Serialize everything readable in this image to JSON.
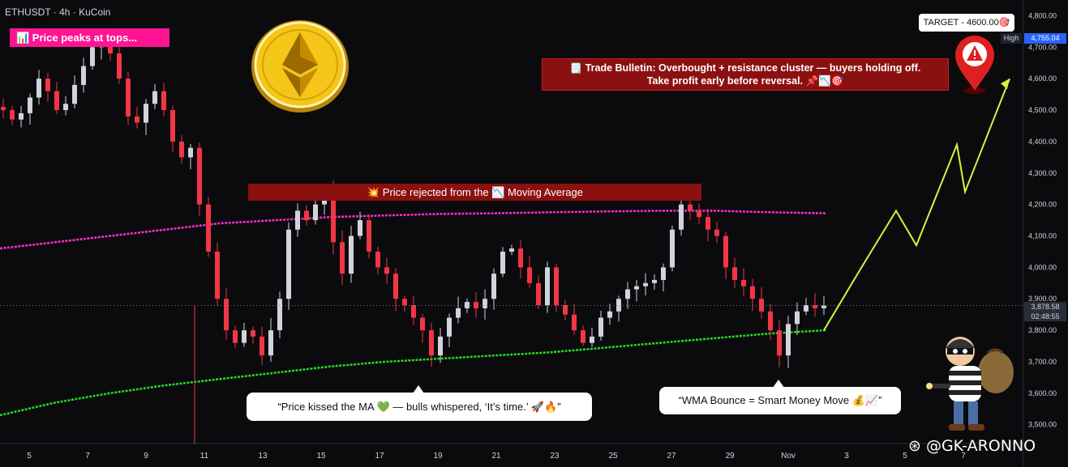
{
  "header": {
    "symbol": "ETHUSDT · 4h · KuCoin"
  },
  "annotations": {
    "peak_banner": "📊 Price peaks at tops...",
    "reject_banner": "💥 Price rejected from the 📉 Moving Average",
    "bulletin_line1": "🗒️ Trade Bulletin: Overbought + resistance cluster — buyers holding off.",
    "bulletin_line2": "Take profit early before reversal. 📌📉🎯",
    "bubble_kiss": "“Price kissed the MA 💚 — bulls whispered, ‘It’s time.’ 🚀🔥”",
    "bubble_wma": "“WMA Bounce = Smart Money Move 💰📈”",
    "target_tag": "TARGET - 4600.00🎯",
    "high_tag": "High",
    "high_price": "4,755.04",
    "last_price": "3,878.58",
    "countdown": "02:48:55",
    "watermark": "⊛ @GK-ARONNO"
  },
  "icons": {
    "coin": "ethereum-coin-icon",
    "pin": "warning-location-pin-icon",
    "thief": "thief-with-money-bag-icon"
  },
  "colors": {
    "background": "#0b0b0e",
    "candle_up": "#d1d4dc",
    "candle_down": "#f23645",
    "ma_upper": "#ff2ed0",
    "ma_lower": "#22dd22",
    "projection": "#d4f542",
    "banner_pink": "#ff1493",
    "banner_red": "#8b1010"
  },
  "chart_data": {
    "type": "candlestick",
    "x_tick_labels": [
      "5",
      "7",
      "9",
      "11",
      "13",
      "15",
      "17",
      "19",
      "21",
      "23",
      "25",
      "27",
      "29",
      "Nov",
      "3",
      "5",
      "7"
    ],
    "y_ticks": [
      3500,
      3600,
      3700,
      3800,
      3900,
      4000,
      4100,
      4200,
      4300,
      4400,
      4500,
      4600,
      4700,
      4800
    ],
    "y_tick_labels": [
      "3,500.00",
      "3,600.00",
      "3,700.00",
      "3,800.00",
      "3,900.00",
      "4,000.00",
      "4,100.00",
      "4,200.00",
      "4,300.00",
      "4,400.00",
      "4,500.00",
      "4,600.00",
      "4,700.00",
      "4,800.00"
    ],
    "ylim": [
      3440,
      4850
    ],
    "close_path": [
      4500,
      4470,
      4490,
      4540,
      4600,
      4560,
      4500,
      4520,
      4580,
      4640,
      4700,
      4720,
      4680,
      4600,
      4480,
      4460,
      4520,
      4560,
      4500,
      4400,
      4350,
      4380,
      4200,
      4050,
      3900,
      3800,
      3760,
      3800,
      3780,
      3720,
      3800,
      3900,
      4120,
      4180,
      4150,
      4200,
      4240,
      4080,
      3980,
      4100,
      4150,
      4050,
      4000,
      3980,
      3900,
      3880,
      3840,
      3800,
      3720,
      3780,
      3840,
      3870,
      3890,
      3870,
      3900,
      3980,
      4050,
      4060,
      4000,
      3950,
      3880,
      4000,
      3880,
      3850,
      3800,
      3760,
      3780,
      3840,
      3860,
      3900,
      3930,
      3940,
      3950,
      3960,
      4000,
      4120,
      4200,
      4180,
      4160,
      4120,
      4100,
      4000,
      3960,
      3940,
      3900,
      3860,
      3800,
      3720,
      3820,
      3860,
      3880,
      3870,
      3878.58
    ],
    "ma_upper": [
      4060,
      4080,
      4100,
      4120,
      4140,
      4150,
      4160,
      4165,
      4170,
      4172,
      4175,
      4178,
      4180,
      4180,
      4175,
      4172
    ],
    "ma_lower": [
      3530,
      3570,
      3600,
      3625,
      3645,
      3665,
      3685,
      3700,
      3710,
      3720,
      3730,
      3745,
      3760,
      3775,
      3790,
      3800
    ],
    "projection_path": [
      3800,
      3990,
      4180,
      4070,
      4390,
      4240,
      4600
    ],
    "target": 4600.0,
    "high": 4755.04,
    "last": 3878.58
  }
}
